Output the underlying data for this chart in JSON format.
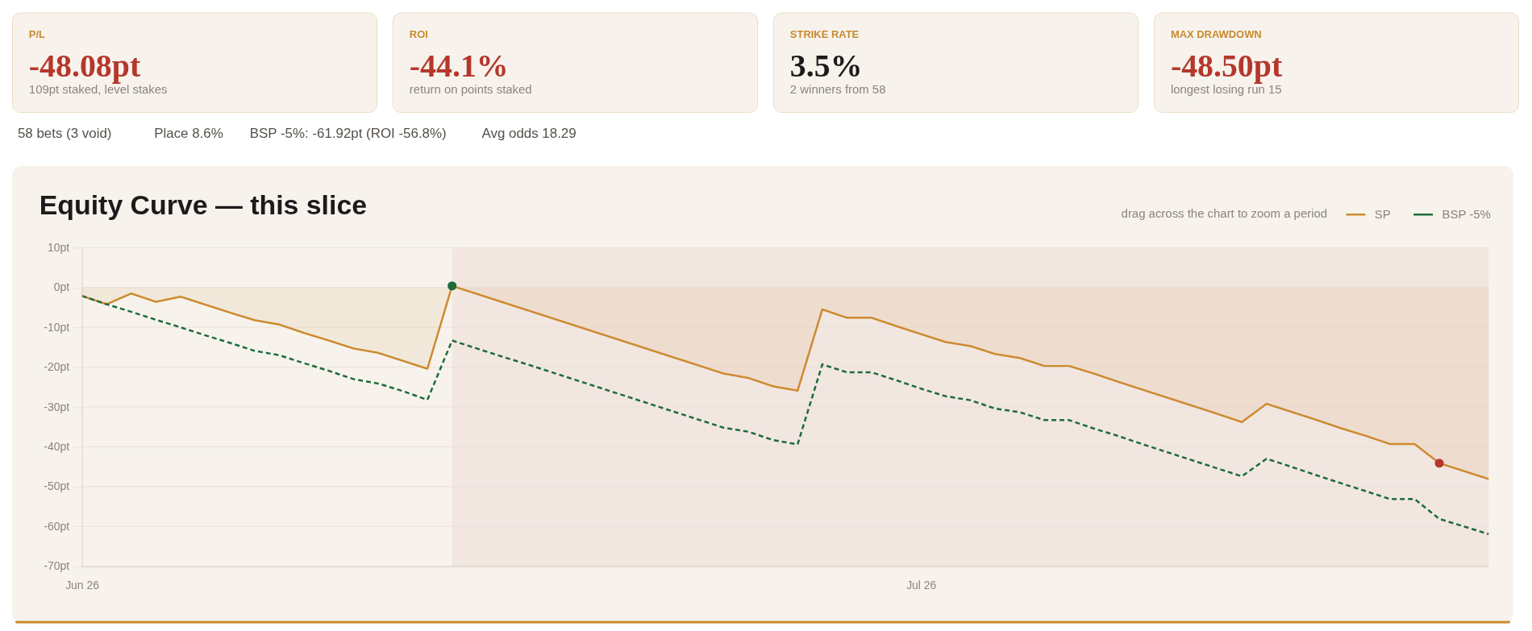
{
  "chart_data": [
    {
      "type": "other",
      "title": "P/L",
      "annotations": [
        "-48.08pt",
        "109pt staked, level stakes"
      ],
      "color": "#b5372c"
    },
    {
      "type": "other",
      "title": "ROI",
      "annotations": [
        "-44.1%",
        "return on points staked"
      ],
      "color": "#b5372c"
    },
    {
      "type": "other",
      "title": "STRIKE RATE",
      "annotations": [
        "3.5%",
        "2 winners from 58"
      ],
      "color": "#1b1b1b"
    },
    {
      "type": "other",
      "title": "MAX DRAWDOWN",
      "annotations": [
        "-48.50pt",
        "longest losing run 15"
      ],
      "color": "#b5372c"
    },
    {
      "type": "other",
      "annotations": [
        "58 bets (3 void)",
        "Place 8.6%",
        "BSP -5%: -61.92pt (ROI -56.8%)",
        "Avg odds 18.29"
      ]
    },
    {
      "type": "line",
      "title": "Equity Curve — this slice",
      "annotations": [
        "drag across the chart to zoom a period"
      ],
      "categories": [
        "Jun 26",
        null,
        null,
        null,
        null,
        null,
        null,
        null,
        null,
        null,
        null,
        null,
        null,
        null,
        null,
        null,
        null,
        null,
        null,
        null,
        null,
        null,
        null,
        null,
        null,
        null,
        null,
        null,
        null,
        null,
        null,
        null,
        null,
        null,
        "Jul 26",
        null,
        null,
        null,
        null,
        null,
        null,
        null,
        null,
        null,
        null,
        null,
        null,
        null,
        null,
        null,
        null,
        null,
        null,
        null,
        null,
        null,
        null,
        null
      ],
      "ylim": [
        -70,
        10
      ],
      "yticks": [
        {
          "value": 10,
          "label": "10pt"
        },
        {
          "value": 0,
          "label": "0pt"
        },
        {
          "value": -10,
          "label": "-10pt"
        },
        {
          "value": -20,
          "label": "-20pt"
        },
        {
          "value": -30,
          "label": "-30pt"
        },
        {
          "value": -40,
          "label": "-40pt"
        },
        {
          "value": -50,
          "label": "-50pt"
        },
        {
          "value": -60,
          "label": "-60pt"
        },
        {
          "value": -70,
          "label": "-70pt"
        }
      ],
      "grid": "y",
      "legend": "top right",
      "series": [
        {
          "name": "SP",
          "type": "area",
          "color": "#cc8a2e",
          "values": [
            -2.1,
            -4.2,
            -1.5,
            -3.6,
            -2.3,
            -4.3,
            -6.3,
            -8.2,
            -9.3,
            -11.4,
            -13.3,
            -15.3,
            -16.4,
            -18.4,
            -20.4,
            0.4,
            -1.6,
            -3.6,
            -5.6,
            -7.6,
            -9.6,
            -11.6,
            -13.6,
            -15.6,
            -17.6,
            -19.6,
            -21.6,
            -22.7,
            -24.8,
            -25.9,
            -5.5,
            -7.6,
            -7.6,
            -9.7,
            -11.7,
            -13.7,
            -14.7,
            -16.7,
            -17.7,
            -19.7,
            -19.7,
            -21.6,
            -23.7,
            -25.7,
            -27.7,
            -29.7,
            -31.7,
            -33.8,
            -29.2,
            -31.2,
            -33.2,
            -35.3,
            -37.2,
            -39.3,
            -39.3,
            -44.1,
            -46.1,
            -48.08
          ]
        },
        {
          "name": "BSP -5%",
          "type": "line",
          "line_style": "dashed",
          "color": "#1d6b3b",
          "values": [
            -2.1,
            -4.2,
            -6.1,
            -8.1,
            -10.0,
            -12.0,
            -13.9,
            -15.9,
            -17.0,
            -19.0,
            -20.9,
            -23.0,
            -24.1,
            -26.0,
            -28.2,
            -13.3,
            -15.3,
            -17.3,
            -19.2,
            -21.2,
            -23.2,
            -25.2,
            -27.2,
            -29.2,
            -31.2,
            -33.2,
            -35.2,
            -36.2,
            -38.3,
            -39.4,
            -19.3,
            -21.3,
            -21.3,
            -23.3,
            -25.4,
            -27.3,
            -28.3,
            -30.4,
            -31.3,
            -33.3,
            -33.3,
            -35.4,
            -37.3,
            -39.4,
            -41.4,
            -43.4,
            -45.4,
            -47.4,
            -43.0,
            -45.0,
            -47.1,
            -49.1,
            -51.1,
            -53.1,
            -53.1,
            -58.1,
            -60.0,
            -61.92
          ]
        },
        {
          "type": "scatter",
          "color": "#1d6b3b",
          "values": [
            null,
            null,
            null,
            null,
            null,
            null,
            null,
            null,
            null,
            null,
            null,
            null,
            null,
            null,
            null,
            0.4,
            null,
            null,
            null,
            null,
            null,
            null,
            null,
            null,
            null,
            null,
            null,
            null,
            null,
            null,
            null,
            null,
            null,
            null,
            null,
            null,
            null,
            null,
            null,
            null,
            null,
            null,
            null,
            null,
            null,
            null,
            null,
            null,
            null,
            null,
            null,
            null,
            null,
            null,
            null,
            null,
            null,
            null
          ]
        },
        {
          "type": "scatter",
          "color": "#b5372c",
          "values": [
            null,
            null,
            null,
            null,
            null,
            null,
            null,
            null,
            null,
            null,
            null,
            null,
            null,
            null,
            null,
            null,
            null,
            null,
            null,
            null,
            null,
            null,
            null,
            null,
            null,
            null,
            null,
            null,
            null,
            null,
            null,
            null,
            null,
            null,
            null,
            null,
            null,
            null,
            null,
            null,
            null,
            null,
            null,
            null,
            null,
            null,
            null,
            null,
            null,
            null,
            null,
            null,
            null,
            null,
            null,
            -44.1,
            null,
            null
          ]
        }
      ]
    }
  ]
}
